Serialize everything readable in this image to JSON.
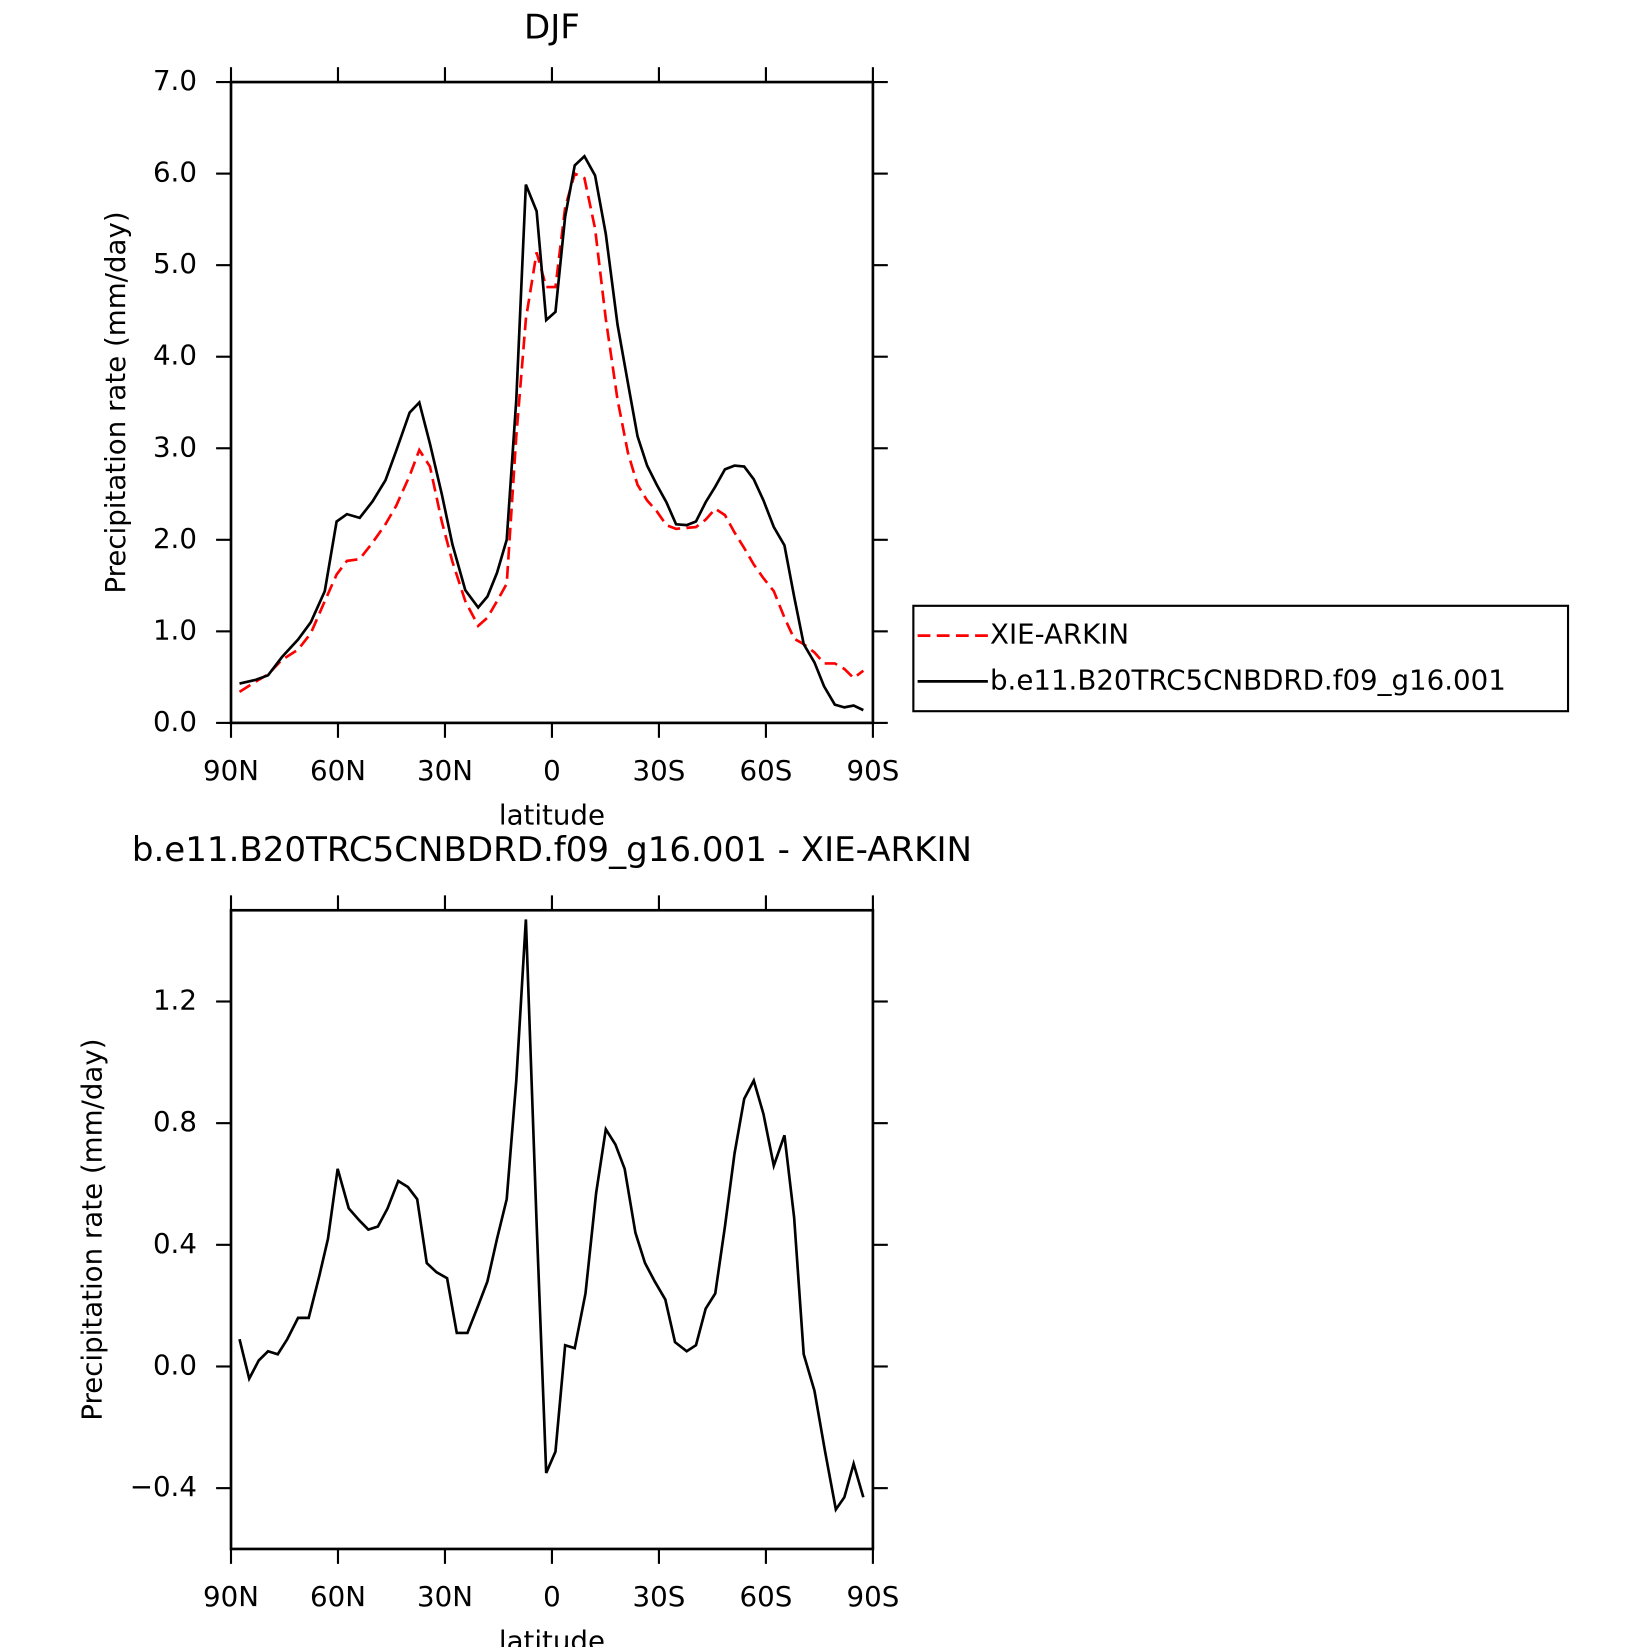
{
  "chart_data": [
    {
      "type": "line",
      "title": "DJF",
      "x_label": "latitude",
      "y_label": "Precipitation rate (mm/day)",
      "x": [
        87.6,
        83.1,
        79.6,
        75.7,
        71.2,
        67.6,
        63.7,
        60.4,
        57.5,
        53.9,
        50.3,
        46.7,
        43.7,
        39.9,
        37.2,
        34.2,
        30.9,
        27.9,
        24.3,
        20.7,
        18.1,
        15.4,
        12.7,
        10,
        7.3,
        4.3,
        1.6,
        -1,
        -3.7,
        -6.4,
        -9.1,
        -12.1,
        -15.1,
        -18.4,
        -21.3,
        -24,
        -26.7,
        -29.4,
        -32.1,
        -34.8,
        -37.8,
        -40.4,
        -43.1,
        -45.8,
        -48.5,
        -51.2,
        -53.9,
        -56.6,
        -59.3,
        -62.2,
        -65.2,
        -67.9,
        -70.6,
        -73.6,
        -76.3,
        -79.3,
        -82,
        -84.6,
        -87.3
      ],
      "series": [
        {
          "name": "XIE-ARKIN",
          "color": "#ff0000",
          "line_style": "dashed",
          "values": [
            0.34,
            0.45,
            0.53,
            0.69,
            0.8,
            0.98,
            1.33,
            1.62,
            1.77,
            1.79,
            1.97,
            2.17,
            2.37,
            2.7,
            2.98,
            2.8,
            2.2,
            1.76,
            1.33,
            1.06,
            1.15,
            1.33,
            1.52,
            3.13,
            4.41,
            5.14,
            4.76,
            4.76,
            5.63,
            6.0,
            5.95,
            5.4,
            4.41,
            3.53,
            2.95,
            2.6,
            2.43,
            2.31,
            2.16,
            2.12,
            2.13,
            2.14,
            2.22,
            2.34,
            2.27,
            2.08,
            1.91,
            1.73,
            1.58,
            1.44,
            1.15,
            0.92,
            0.86,
            0.77,
            0.65,
            0.65,
            0.59,
            0.49,
            0.57
          ]
        },
        {
          "name": "b.e11.B20TRC5CNBDRD.f09_g16.001",
          "color": "#000000",
          "line_style": "solid",
          "values": [
            0.43,
            0.47,
            0.52,
            0.72,
            0.91,
            1.1,
            1.44,
            2.2,
            2.28,
            2.24,
            2.42,
            2.65,
            2.97,
            3.39,
            3.5,
            3.05,
            2.5,
            1.95,
            1.45,
            1.26,
            1.38,
            1.64,
            2.0,
            3.53,
            5.88,
            5.59,
            4.4,
            4.49,
            5.53,
            6.09,
            6.19,
            5.98,
            5.34,
            4.35,
            3.71,
            3.13,
            2.81,
            2.6,
            2.41,
            2.17,
            2.16,
            2.2,
            2.41,
            2.58,
            2.77,
            2.81,
            2.8,
            2.66,
            2.43,
            2.14,
            1.94,
            1.38,
            0.86,
            0.66,
            0.4,
            0.2,
            0.17,
            0.19,
            0.14
          ]
        }
      ],
      "xlim": [
        90,
        -90
      ],
      "xticks": [
        {
          "value": 90,
          "label": "90N"
        },
        {
          "value": 60,
          "label": "60N"
        },
        {
          "value": 30,
          "label": "30N"
        },
        0,
        {
          "value": -30,
          "label": "30S"
        },
        {
          "value": -60,
          "label": "60S"
        },
        {
          "value": -90,
          "label": "90S"
        }
      ],
      "ylim": [
        0,
        7
      ],
      "yticks": [
        {
          "value": 0,
          "label": "0.0"
        },
        {
          "value": 1,
          "label": "1.0"
        },
        {
          "value": 2,
          "label": "2.0"
        },
        {
          "value": 3,
          "label": "3.0"
        },
        {
          "value": 4,
          "label": "4.0"
        },
        {
          "value": 5,
          "label": "5.0"
        },
        {
          "value": 6,
          "label": "6.0"
        },
        {
          "value": 7,
          "label": "7.0"
        }
      ],
      "legend": "outside-right"
    },
    {
      "type": "line",
      "title": "b.e11.B20TRC5CNBDRD.f09_g16.001 - XIE-ARKIN",
      "x_label": "latitude",
      "y_label": "Precipitation rate (mm/day)",
      "x": [
        87.6,
        84.9,
        82.2,
        79.6,
        76.9,
        74.2,
        71.2,
        68.2,
        65.2,
        62.8,
        60.1,
        57.0,
        54.0,
        51.5,
        48.8,
        46.1,
        43.1,
        40.4,
        37.8,
        35.1,
        32.4,
        29.4,
        26.7,
        23.7,
        20.7,
        18.1,
        15.4,
        12.7,
        10.0,
        7.3,
        4.3,
        1.6,
        -1.0,
        -3.7,
        -6.4,
        -9.4,
        -12.4,
        -15.1,
        -17.8,
        -20.4,
        -23.4,
        -26.1,
        -28.8,
        -31.8,
        -34.5,
        -37.8,
        -40.4,
        -43.1,
        -45.8,
        -48.5,
        -51.2,
        -53.9,
        -56.6,
        -59.3,
        -62.2,
        -65.2,
        -67.9,
        -70.6,
        -73.6,
        -76.6,
        -79.6,
        -82.0,
        -84.6,
        -87.3
      ],
      "series": [
        {
          "color": "#000000",
          "line_style": "solid",
          "values": [
            0.09,
            -0.04,
            0.02,
            0.05,
            0.04,
            0.09,
            0.16,
            0.16,
            0.3,
            0.42,
            0.65,
            0.52,
            0.48,
            0.45,
            0.46,
            0.52,
            0.61,
            0.59,
            0.55,
            0.34,
            0.31,
            0.29,
            0.11,
            0.11,
            0.2,
            0.28,
            0.42,
            0.55,
            0.94,
            1.47,
            0.47,
            -0.35,
            -0.28,
            0.07,
            0.06,
            0.24,
            0.57,
            0.78,
            0.73,
            0.65,
            0.44,
            0.34,
            0.28,
            0.22,
            0.08,
            0.05,
            0.07,
            0.19,
            0.24,
            0.46,
            0.7,
            0.88,
            0.94,
            0.83,
            0.66,
            0.76,
            0.49,
            0.04,
            -0.08,
            -0.28,
            -0.47,
            -0.43,
            -0.32,
            -0.43
          ]
        }
      ],
      "xlim": [
        90,
        -90
      ],
      "xticks": [
        {
          "value": 90,
          "label": "90N"
        },
        {
          "value": 60,
          "label": "60N"
        },
        {
          "value": 30,
          "label": "30N"
        },
        0,
        {
          "value": -30,
          "label": "30S"
        },
        {
          "value": -60,
          "label": "60S"
        },
        {
          "value": -90,
          "label": "90S"
        }
      ],
      "ylim": [
        -0.6,
        1.5
      ],
      "yticks": [
        {
          "value": -0.4,
          "label": "−0.4"
        },
        {
          "value": 0,
          "label": "0.0"
        },
        0.4,
        0.8,
        1.2
      ]
    }
  ]
}
